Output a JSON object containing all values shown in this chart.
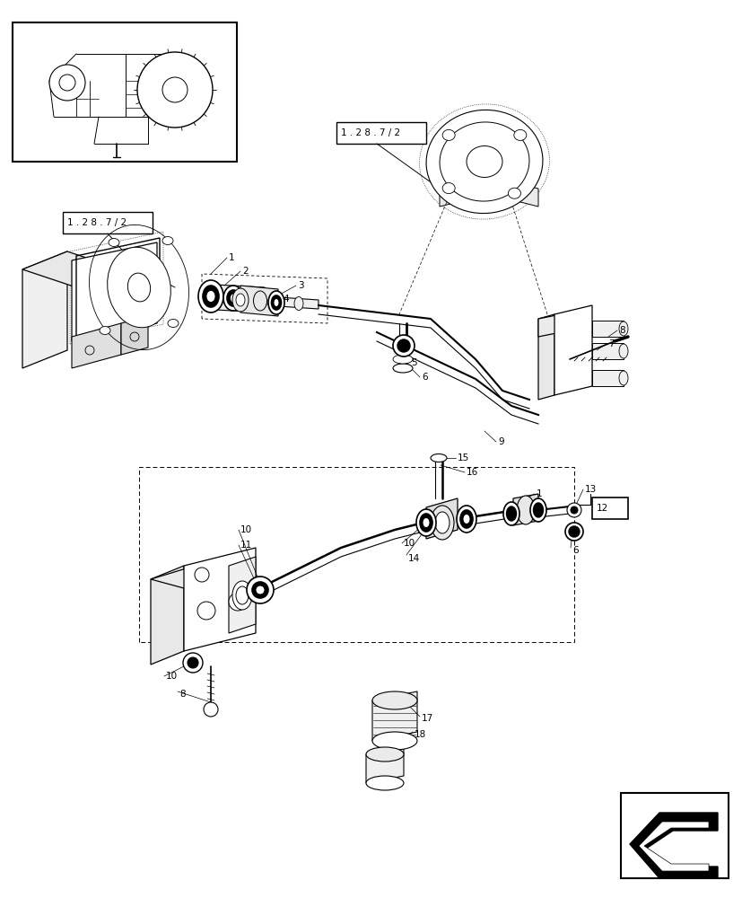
{
  "bg_color": "#ffffff",
  "lc": "#000000",
  "fig_width": 8.28,
  "fig_height": 10.0,
  "dpi": 100,
  "ref_label_top": "1 . 2 8 . 7 / 2",
  "ref_label_left": "1 . 2 8 . 7 / 2",
  "fs": 7.5,
  "fs_ref": 8.0
}
